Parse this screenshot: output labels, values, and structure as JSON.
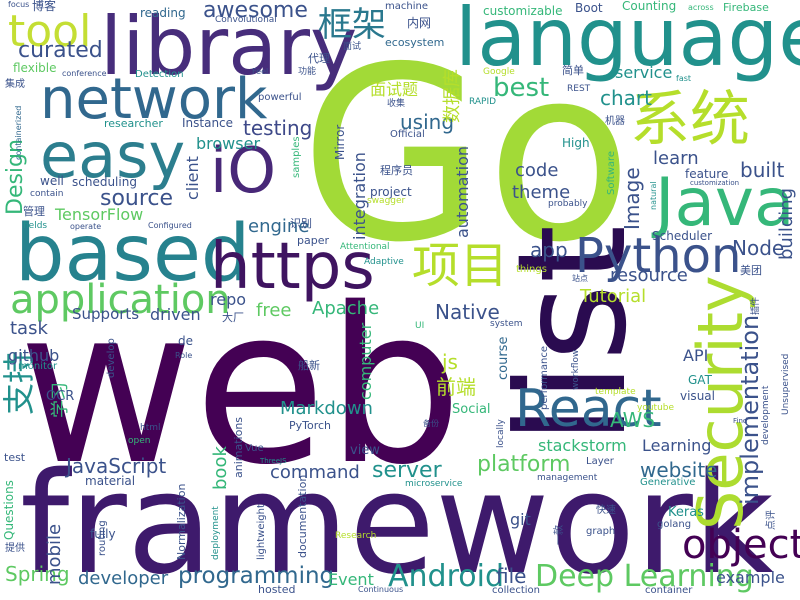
{
  "palette": {
    "dark_purple": "#440154",
    "indigo": "#3b528b",
    "teal": "#21918c",
    "green": "#5ec962",
    "lime": "#b5de2b",
    "blue": "#31688e",
    "sea": "#35b779",
    "navy": "#472d7b"
  },
  "words": [
    {
      "text": "web",
      "color": "#440154"
    },
    {
      "text": "framework",
      "color": "#3e1a6c"
    },
    {
      "text": "Go",
      "color": "#a2da37"
    },
    {
      "text": "list",
      "color": "#2a0b50"
    },
    {
      "text": "library",
      "color": "#472d7b"
    },
    {
      "text": "language",
      "color": "#21918c"
    },
    {
      "text": "based",
      "color": "#26828e"
    },
    {
      "text": "https",
      "color": "#3f1460"
    },
    {
      "text": "network",
      "color": "#31688e"
    },
    {
      "text": "easy",
      "color": "#2c7e8e"
    },
    {
      "text": "iO",
      "color": "#482878"
    },
    {
      "text": "Java",
      "color": "#35b779"
    },
    {
      "text": "Security",
      "color": "#addc30"
    },
    {
      "text": "系统",
      "color": "#b5de2b"
    },
    {
      "text": "application",
      "color": "#5ec962"
    },
    {
      "text": "React",
      "color": "#31688e"
    },
    {
      "text": "Python",
      "color": "#3b528b"
    },
    {
      "text": "项目",
      "color": "#b5de2b"
    },
    {
      "text": "tool",
      "color": "#c4de34"
    },
    {
      "text": "框架",
      "color": "#2a788e"
    },
    {
      "text": "object",
      "color": "#440154"
    },
    {
      "text": "Android",
      "color": "#21918c"
    },
    {
      "text": "Deep Learning",
      "color": "#5ec962"
    },
    {
      "text": "programming",
      "color": "#31688e"
    },
    {
      "text": "implementation",
      "color": "#3b528b"
    },
    {
      "text": "awesome",
      "color": "#3b528b"
    },
    {
      "text": "curated",
      "color": "#3b528b"
    },
    {
      "text": "best",
      "color": "#35b779"
    },
    {
      "text": "source",
      "color": "#3b528b"
    },
    {
      "text": "Design",
      "color": "#35b779"
    },
    {
      "text": "testing",
      "color": "#3e4989"
    },
    {
      "text": "using",
      "color": "#31688e"
    },
    {
      "text": "支持",
      "color": "#21918c"
    },
    {
      "text": "Spring",
      "color": "#5ec962"
    },
    {
      "text": "website",
      "color": "#31688e"
    },
    {
      "text": "command",
      "color": "#3b528b"
    },
    {
      "text": "server",
      "color": "#21918c"
    },
    {
      "text": "platform",
      "color": "#5ec962"
    },
    {
      "text": "JavaScript",
      "color": "#3b528b"
    },
    {
      "text": "developer",
      "color": "#31688e"
    },
    {
      "text": "mobile",
      "color": "#3b528b"
    },
    {
      "text": "Markdown",
      "color": "#21918c"
    },
    {
      "text": "Native",
      "color": "#3b528b"
    },
    {
      "text": "Apache",
      "color": "#35b779"
    },
    {
      "text": "resource",
      "color": "#3b528b"
    },
    {
      "text": "app",
      "color": "#3b528b"
    },
    {
      "text": "engine",
      "color": "#31688e"
    },
    {
      "text": "Node",
      "color": "#3b528b"
    },
    {
      "text": "Tutorial",
      "color": "#b5de2b"
    },
    {
      "text": "Image",
      "color": "#3b528b"
    },
    {
      "text": "theme",
      "color": "#3b528b"
    },
    {
      "text": "code",
      "color": "#3b528b"
    },
    {
      "text": "built",
      "color": "#3b528b"
    },
    {
      "text": "chart",
      "color": "#21918c"
    },
    {
      "text": "learn",
      "color": "#3b528b"
    },
    {
      "text": "building",
      "color": "#3b528b"
    },
    {
      "text": "service",
      "color": "#21918c"
    },
    {
      "text": "file",
      "color": "#3b528b"
    },
    {
      "text": "example",
      "color": "#3b528b"
    },
    {
      "text": "Event",
      "color": "#35b779"
    },
    {
      "text": "book",
      "color": "#35b779"
    },
    {
      "text": "task",
      "color": "#3b528b"
    },
    {
      "text": "github",
      "color": "#3b528b"
    },
    {
      "text": "repo",
      "color": "#3b528b"
    },
    {
      "text": "free",
      "color": "#5ec962"
    },
    {
      "text": "driven",
      "color": "#3b528b"
    },
    {
      "text": "Supports",
      "color": "#3b528b"
    },
    {
      "text": "TensorFlow",
      "color": "#5ec962"
    },
    {
      "text": "client",
      "color": "#3b528b"
    },
    {
      "text": "browser",
      "color": "#21918c"
    },
    {
      "text": "integration",
      "color": "#3b528b"
    },
    {
      "text": "computer",
      "color": "#35b779"
    },
    {
      "text": "automation",
      "color": "#3b528b"
    },
    {
      "text": "AWS",
      "color": "#35b779"
    },
    {
      "text": "Learning",
      "color": "#3b528b"
    },
    {
      "text": "stackstorm",
      "color": "#35b779"
    },
    {
      "text": "js",
      "color": "#b5de2b"
    },
    {
      "text": "前端",
      "color": "#b5de2b"
    },
    {
      "text": "数据库",
      "color": "#b5de2b"
    },
    {
      "text": "面试题",
      "color": "#b5de2b"
    },
    {
      "text": "学习",
      "color": "#35b779"
    },
    {
      "text": "API",
      "color": "#3b528b"
    },
    {
      "text": "git",
      "color": "#3b528b"
    },
    {
      "text": "Keras",
      "color": "#21918c"
    },
    {
      "text": "course",
      "color": "#31688e"
    },
    {
      "text": "view",
      "color": "#3b528b"
    },
    {
      "text": "Social",
      "color": "#35b779"
    },
    {
      "text": "OCR",
      "color": "#3b528b"
    },
    {
      "text": "Scheduler",
      "color": "#3b528b"
    },
    {
      "text": "feature",
      "color": "#3b528b"
    },
    {
      "text": "scheduling",
      "color": "#3b528b"
    },
    {
      "text": "well",
      "color": "#3b528b"
    },
    {
      "text": "Instance",
      "color": "#3b528b"
    },
    {
      "text": "researcher",
      "color": "#21918c"
    },
    {
      "text": "powerful",
      "color": "#3b528b"
    },
    {
      "text": "Mirror",
      "color": "#3b528b"
    },
    {
      "text": "project",
      "color": "#3b528b"
    },
    {
      "text": "ecosystem",
      "color": "#31688e"
    },
    {
      "text": "内网",
      "color": "#3b528b"
    },
    {
      "text": "代理",
      "color": "#3b528b"
    },
    {
      "text": "Boot",
      "color": "#3b528b"
    },
    {
      "text": "customizable",
      "color": "#35b779"
    },
    {
      "text": "Counting",
      "color": "#35b779"
    },
    {
      "text": "Firebase",
      "color": "#35b779"
    },
    {
      "text": "machine",
      "color": "#3b528b"
    },
    {
      "text": "reading",
      "color": "#31688e"
    },
    {
      "text": "Convolutional",
      "color": "#3b528b"
    },
    {
      "text": "博客",
      "color": "#3b528b"
    },
    {
      "text": "focus",
      "color": "#3b528b"
    },
    {
      "text": "flexible",
      "color": "#5ec962"
    },
    {
      "text": "conference",
      "color": "#3b528b"
    },
    {
      "text": "Detection",
      "color": "#21918c"
    },
    {
      "text": "集成",
      "color": "#3b528b"
    },
    {
      "text": "containerized",
      "color": "#31688e"
    },
    {
      "text": "fields",
      "color": "#21918c"
    },
    {
      "text": "operate",
      "color": "#3b528b"
    },
    {
      "text": "管理",
      "color": "#3b528b"
    },
    {
      "text": "contain",
      "color": "#3b528b"
    },
    {
      "text": "samples",
      "color": "#35b779"
    },
    {
      "text": "Configured",
      "color": "#3b528b"
    },
    {
      "text": "识别",
      "color": "#3b528b"
    },
    {
      "text": "paper",
      "color": "#3b528b"
    },
    {
      "text": "Attentional",
      "color": "#35b779"
    },
    {
      "text": "Adaptive",
      "color": "#21918c"
    },
    {
      "text": "things",
      "color": "#b5de2b"
    },
    {
      "text": "High",
      "color": "#21918c"
    },
    {
      "text": "Software",
      "color": "#35b779"
    },
    {
      "text": "probably",
      "color": "#3b528b"
    },
    {
      "text": "natural",
      "color": "#21918c"
    },
    {
      "text": "customization",
      "color": "#3b528b"
    },
    {
      "text": "Official",
      "color": "#3b528b"
    },
    {
      "text": "机器",
      "color": "#3b528b"
    },
    {
      "text": "程序员",
      "color": "#3b528b"
    },
    {
      "text": "swagger",
      "color": "#b5de2b"
    },
    {
      "text": "收集",
      "color": "#3b528b"
    },
    {
      "text": "RAPID",
      "color": "#21918c"
    },
    {
      "text": "REST",
      "color": "#3b528b"
    },
    {
      "text": "简单",
      "color": "#3b528b"
    },
    {
      "text": "Google",
      "color": "#b5de2b"
    },
    {
      "text": "fast",
      "color": "#21918c"
    },
    {
      "text": "across",
      "color": "#35b779"
    },
    {
      "text": "功能",
      "color": "#3b528b"
    },
    {
      "text": "面试",
      "color": "#3b528b"
    },
    {
      "text": "Feel",
      "color": "#3b528b"
    },
    {
      "text": "美团",
      "color": "#3b528b"
    },
    {
      "text": "插件",
      "color": "#3b528b"
    },
    {
      "text": "站点",
      "color": "#3b528b"
    },
    {
      "text": "大厂",
      "color": "#3b528b"
    },
    {
      "text": "system",
      "color": "#3b528b"
    },
    {
      "text": "UI",
      "color": "#35b779"
    },
    {
      "text": "船新",
      "color": "#3b528b"
    },
    {
      "text": "de",
      "color": "#3b528b"
    },
    {
      "text": "Role",
      "color": "#3b528b"
    },
    {
      "text": "develop",
      "color": "#3b528b"
    },
    {
      "text": "monitor",
      "color": "#21918c"
    },
    {
      "text": "PyTorch",
      "color": "#3b528b"
    },
    {
      "text": "animations",
      "color": "#3b528b"
    },
    {
      "text": "html",
      "color": "#3b528b"
    },
    {
      "text": "open",
      "color": "#35b779"
    },
    {
      "text": "Vue",
      "color": "#3b528b"
    },
    {
      "text": "ThreeJS",
      "color": "#21918c"
    },
    {
      "text": "performance",
      "color": "#3b528b"
    },
    {
      "text": "workflow",
      "color": "#3b528b"
    },
    {
      "text": "template",
      "color": "#b5de2b"
    },
    {
      "text": "youtube",
      "color": "#b5de2b"
    },
    {
      "text": "visual",
      "color": "#3b528b"
    },
    {
      "text": "GAT",
      "color": "#21918c"
    },
    {
      "text": "Find",
      "color": "#3b528b"
    },
    {
      "text": "Unsupervised",
      "color": "#3b528b"
    },
    {
      "text": "development",
      "color": "#3b528b"
    },
    {
      "text": "备份",
      "color": "#3b528b"
    },
    {
      "text": "locally",
      "color": "#3b528b"
    },
    {
      "text": "Layer",
      "color": "#3b528b"
    },
    {
      "text": "Generative",
      "color": "#21918c"
    },
    {
      "text": "management",
      "color": "#3b528b"
    },
    {
      "text": "material",
      "color": "#3b528b"
    },
    {
      "text": "microservice",
      "color": "#21918c"
    },
    {
      "text": "test",
      "color": "#3b528b"
    },
    {
      "text": "Questions",
      "color": "#35b779"
    },
    {
      "text": "routing",
      "color": "#3b528b"
    },
    {
      "text": "fully",
      "color": "#3b528b"
    },
    {
      "text": "Normalization",
      "color": "#3b528b"
    },
    {
      "text": "lightweight",
      "color": "#3b528b"
    },
    {
      "text": "deployment",
      "color": "#21918c"
    },
    {
      "text": "documentation",
      "color": "#3b528b"
    },
    {
      "text": "Research",
      "color": "#b5de2b"
    },
    {
      "text": "hosted",
      "color": "#3b528b"
    },
    {
      "text": "Continuous",
      "color": "#3b528b"
    },
    {
      "text": "collection",
      "color": "#3b528b"
    },
    {
      "text": "container",
      "color": "#3b528b"
    },
    {
      "text": "golang",
      "color": "#3b528b"
    },
    {
      "text": "graph",
      "color": "#3b528b"
    },
    {
      "text": "快速",
      "color": "#3b528b"
    },
    {
      "text": "一款",
      "color": "#3b528b"
    },
    {
      "text": "点评",
      "color": "#3b528b"
    },
    {
      "text": "提供",
      "color": "#3b528b"
    }
  ]
}
